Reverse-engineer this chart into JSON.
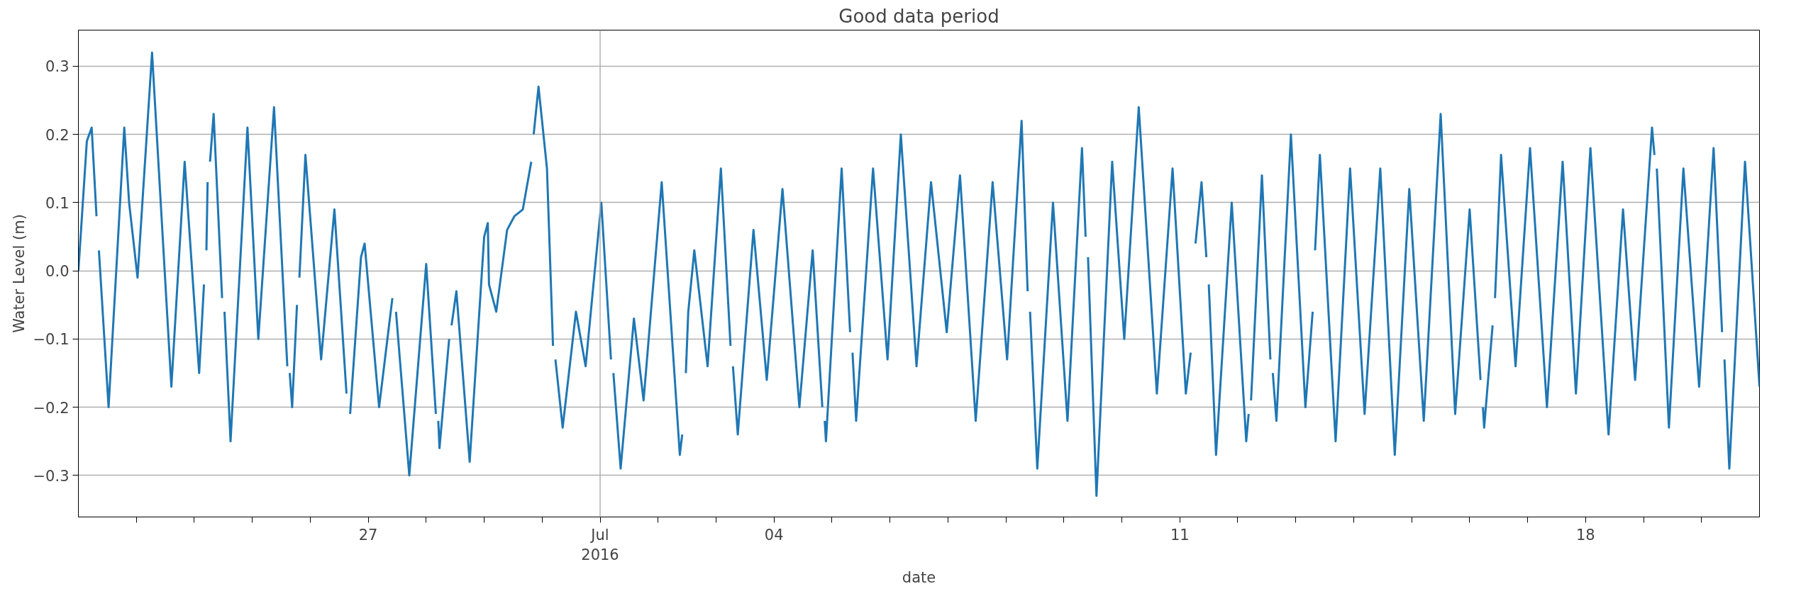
{
  "chart_data": {
    "type": "line",
    "title": "Good data period",
    "xlabel": "date",
    "ylabel": "Water Level (m)",
    "xlim": [
      "2016-06-22T00:00",
      "2016-07-21T00:00"
    ],
    "ylim": [
      -0.361,
      0.353
    ],
    "xticks": [
      {
        "value": "2016-06-23",
        "label": null
      },
      {
        "value": "2016-06-24",
        "label": null
      },
      {
        "value": "2016-06-25",
        "label": null
      },
      {
        "value": "2016-06-26",
        "label": null
      },
      {
        "value": "2016-06-27",
        "label": "27"
      },
      {
        "value": "2016-06-28",
        "label": null
      },
      {
        "value": "2016-06-29",
        "label": null
      },
      {
        "value": "2016-06-30",
        "label": null
      },
      {
        "value": "2016-07-01",
        "label": "Jul\n2016"
      },
      {
        "value": "2016-07-02",
        "label": null
      },
      {
        "value": "2016-07-03",
        "label": null
      },
      {
        "value": "2016-07-04",
        "label": "04"
      },
      {
        "value": "2016-07-05",
        "label": null
      },
      {
        "value": "2016-07-06",
        "label": null
      },
      {
        "value": "2016-07-07",
        "label": null
      },
      {
        "value": "2016-07-08",
        "label": null
      },
      {
        "value": "2016-07-09",
        "label": null
      },
      {
        "value": "2016-07-10",
        "label": null
      },
      {
        "value": "2016-07-11",
        "label": "11"
      },
      {
        "value": "2016-07-12",
        "label": null
      },
      {
        "value": "2016-07-13",
        "label": null
      },
      {
        "value": "2016-07-14",
        "label": null
      },
      {
        "value": "2016-07-15",
        "label": null
      },
      {
        "value": "2016-07-16",
        "label": null
      },
      {
        "value": "2016-07-17",
        "label": null
      },
      {
        "value": "2016-07-18",
        "label": "18"
      },
      {
        "value": "2016-07-19",
        "label": null
      },
      {
        "value": "2016-07-20",
        "label": null
      }
    ],
    "yticks": [
      {
        "value": -0.3,
        "label": "−0.3"
      },
      {
        "value": -0.2,
        "label": "−0.2"
      },
      {
        "value": -0.1,
        "label": "−0.1"
      },
      {
        "value": 0,
        "label": "0.0"
      },
      {
        "value": 0.1,
        "label": "0.1"
      },
      {
        "value": 0.2,
        "label": "0.2"
      },
      {
        "value": 0.3,
        "label": "0.3"
      }
    ],
    "grid": "y",
    "ref_lines": [
      {
        "axis": "x",
        "value": "2016-07-01",
        "color": "#b0b0b0"
      }
    ],
    "x": [
      "2016-06-22T00:00",
      "2016-06-22T03:30",
      "2016-06-22T05:30",
      "2016-06-22T07:30",
      "2016-06-22T08:00",
      "2016-06-22T08:30",
      "2016-06-22T12:30",
      "2016-06-22T19:00",
      "2016-06-22T21:00",
      "2016-06-23T00:30",
      "2016-06-23T06:30",
      "2016-06-23T14:30",
      "2016-06-23T20:00",
      "2016-06-24T02:00",
      "2016-06-24T04:00",
      "2016-06-24T04:30",
      "2016-06-24T05:00",
      "2016-06-24T05:30",
      "2016-06-24T06:00",
      "2016-06-24T06:30",
      "2016-06-24T08:00",
      "2016-06-24T11:30",
      "2016-06-24T12:00",
      "2016-06-24T12:30",
      "2016-06-24T15:00",
      "2016-06-24T22:00",
      "2016-06-25T02:30",
      "2016-06-25T09:00",
      "2016-06-25T14:30",
      "2016-06-25T15:00",
      "2016-06-25T15:30",
      "2016-06-25T16:30",
      "2016-06-25T18:30",
      "2016-06-25T19:00",
      "2016-06-25T19:30",
      "2016-06-25T22:00",
      "2016-06-26T04:30",
      "2016-06-26T10:00",
      "2016-06-26T15:00",
      "2016-06-26T15:30",
      "2016-06-26T16:30",
      "2016-06-26T21:00",
      "2016-06-26T22:30",
      "2016-06-27T04:30",
      "2016-06-27T10:00",
      "2016-06-27T10:30",
      "2016-06-27T11:30",
      "2016-06-27T17:00",
      "2016-06-28T00:00",
      "2016-06-28T04:00",
      "2016-06-28T04:30",
      "2016-06-28T05:00",
      "2016-06-28T05:30",
      "2016-06-28T09:30",
      "2016-06-28T10:00",
      "2016-06-28T10:30",
      "2016-06-28T12:30",
      "2016-06-28T18:00",
      "2016-06-29T00:00",
      "2016-06-29T01:30",
      "2016-06-29T02:00",
      "2016-06-29T05:00",
      "2016-06-29T09:30",
      "2016-06-29T12:30",
      "2016-06-29T16:00",
      "2016-06-29T19:30",
      "2016-06-29T20:00",
      "2016-06-29T20:30",
      "2016-06-29T22:30",
      "2016-06-30T02:00",
      "2016-06-30T04:30",
      "2016-06-30T05:00",
      "2016-06-30T05:30",
      "2016-06-30T08:30",
      "2016-06-30T14:00",
      "2016-06-30T18:00",
      "2016-07-01T00:30",
      "2016-07-01T04:30",
      "2016-07-01T05:00",
      "2016-07-01T05:30",
      "2016-07-01T08:30",
      "2016-07-01T14:00",
      "2016-07-01T18:00",
      "2016-07-02T01:30",
      "2016-07-02T09:00",
      "2016-07-02T10:00",
      "2016-07-02T10:30",
      "2016-07-02T11:30",
      "2016-07-02T12:30",
      "2016-07-02T15:00",
      "2016-07-02T20:30",
      "2016-07-03T02:00",
      "2016-07-03T06:00",
      "2016-07-03T06:30",
      "2016-07-03T07:00",
      "2016-07-03T09:00",
      "2016-07-03T15:30",
      "2016-07-03T21:00",
      "2016-07-04T03:30",
      "2016-07-04T10:30",
      "2016-07-04T16:00",
      "2016-07-04T20:00",
      "2016-07-04T20:30",
      "2016-07-04T21:00",
      "2016-07-04T21:30",
      "2016-07-05T04:00",
      "2016-07-05T07:30",
      "2016-07-05T08:00",
      "2016-07-05T08:30",
      "2016-07-05T10:00",
      "2016-07-05T17:00",
      "2016-07-05T23:00",
      "2016-07-06T04:30",
      "2016-07-06T11:00",
      "2016-07-06T17:00",
      "2016-07-06T23:30",
      "2016-07-07T05:00",
      "2016-07-07T11:30",
      "2016-07-07T18:30",
      "2016-07-08T00:30",
      "2016-07-08T06:30",
      "2016-07-08T09:00",
      "2016-07-08T09:30",
      "2016-07-08T10:00",
      "2016-07-08T13:00",
      "2016-07-08T19:30",
      "2016-07-09T01:30",
      "2016-07-09T07:30",
      "2016-07-09T09:00",
      "2016-07-09T09:30",
      "2016-07-09T10:00",
      "2016-07-09T13:30",
      "2016-07-09T20:00",
      "2016-07-10T01:00",
      "2016-07-10T07:00",
      "2016-07-10T14:30",
      "2016-07-10T21:00",
      "2016-07-11T02:30",
      "2016-07-11T04:30",
      "2016-07-11T05:00",
      "2016-07-11T06:30",
      "2016-07-11T09:00",
      "2016-07-11T11:00",
      "2016-07-11T11:30",
      "2016-07-11T12:00",
      "2016-07-11T15:00",
      "2016-07-11T21:30",
      "2016-07-12T03:30",
      "2016-07-12T04:30",
      "2016-07-12T05:00",
      "2016-07-12T05:30",
      "2016-07-12T10:00",
      "2016-07-12T13:30",
      "2016-07-12T14:00",
      "2016-07-12T14:30",
      "2016-07-12T16:00",
      "2016-07-12T22:00",
      "2016-07-13T04:00",
      "2016-07-13T07:00",
      "2016-07-13T07:30",
      "2016-07-13T08:00",
      "2016-07-13T10:00",
      "2016-07-13T16:30",
      "2016-07-13T22:30",
      "2016-07-14T04:30",
      "2016-07-14T11:00",
      "2016-07-14T17:00",
      "2016-07-14T23:00",
      "2016-07-15T05:00",
      "2016-07-15T12:00",
      "2016-07-15T18:00",
      "2016-07-16T00:00",
      "2016-07-16T04:30",
      "2016-07-16T05:00",
      "2016-07-16T05:30",
      "2016-07-16T06:00",
      "2016-07-16T09:30",
      "2016-07-16T10:00",
      "2016-07-16T10:30",
      "2016-07-16T13:00",
      "2016-07-16T19:00",
      "2016-07-17T01:00",
      "2016-07-17T08:00",
      "2016-07-17T14:30",
      "2016-07-17T20:00",
      "2016-07-18T02:00",
      "2016-07-18T09:30",
      "2016-07-18T15:30",
      "2016-07-18T20:30",
      "2016-07-19T03:30",
      "2016-07-19T04:30",
      "2016-07-19T05:00",
      "2016-07-19T05:30",
      "2016-07-19T10:30",
      "2016-07-19T16:30",
      "2016-07-19T23:00",
      "2016-07-20T05:00",
      "2016-07-20T08:30",
      "2016-07-20T09:00",
      "2016-07-20T09:30",
      "2016-07-20T11:30",
      "2016-07-20T18:00",
      "2016-07-21T00:00"
    ],
    "series": [
      {
        "color": "#1f77b4",
        "values": [
          0.0,
          0.19,
          0.21,
          0.08,
          null,
          0.03,
          -0.2,
          0.21,
          0.1,
          -0.01,
          0.32,
          -0.17,
          0.16,
          -0.15,
          -0.02,
          null,
          0.03,
          0.13,
          null,
          0.16,
          0.23,
          -0.04,
          null,
          -0.06,
          -0.25,
          0.21,
          -0.1,
          0.24,
          -0.14,
          null,
          -0.15,
          -0.2,
          -0.05,
          null,
          -0.01,
          0.17,
          -0.13,
          0.09,
          -0.18,
          null,
          -0.21,
          0.02,
          0.04,
          -0.2,
          -0.04,
          null,
          -0.06,
          -0.3,
          0.01,
          -0.21,
          null,
          -0.22,
          -0.26,
          -0.1,
          null,
          -0.08,
          -0.03,
          -0.28,
          0.05,
          0.07,
          -0.02,
          -0.06,
          0.06,
          0.08,
          0.09,
          0.16,
          null,
          0.2,
          0.27,
          0.15,
          -0.11,
          null,
          -0.13,
          -0.23,
          -0.06,
          -0.14,
          0.1,
          -0.13,
          null,
          -0.15,
          -0.29,
          -0.07,
          -0.19,
          0.13,
          -0.27,
          -0.24,
          null,
          -0.15,
          -0.06,
          0.03,
          -0.14,
          0.15,
          -0.11,
          null,
          -0.14,
          -0.24,
          0.06,
          -0.16,
          0.12,
          -0.2,
          0.03,
          -0.2,
          null,
          -0.22,
          -0.25,
          0.15,
          -0.09,
          null,
          -0.12,
          -0.22,
          0.15,
          -0.13,
          0.2,
          -0.14,
          0.13,
          -0.09,
          0.14,
          -0.22,
          0.13,
          -0.13,
          0.22,
          -0.03,
          null,
          -0.06,
          -0.29,
          0.1,
          -0.22,
          0.18,
          0.05,
          null,
          0.02,
          -0.33,
          0.16,
          -0.1,
          0.24,
          -0.18,
          0.15,
          -0.18,
          -0.12,
          null,
          0.04,
          0.13,
          0.02,
          null,
          -0.02,
          -0.27,
          0.1,
          -0.25,
          -0.21,
          null,
          -0.19,
          0.14,
          -0.13,
          null,
          -0.15,
          -0.22,
          0.2,
          -0.2,
          -0.06,
          null,
          0.03,
          0.17,
          -0.25,
          0.15,
          -0.21,
          0.15,
          -0.27,
          0.12,
          -0.22,
          0.23,
          -0.21,
          0.09,
          -0.16,
          null,
          -0.2,
          -0.23,
          -0.08,
          null,
          -0.04,
          0.17,
          -0.14,
          0.18,
          -0.2,
          0.16,
          -0.18,
          0.18,
          -0.24,
          0.09,
          -0.16,
          0.21,
          0.17,
          null,
          0.15,
          -0.23,
          0.15,
          -0.17,
          0.18,
          -0.09,
          null,
          -0.13,
          -0.29,
          0.16,
          -0.17
        ]
      }
    ]
  }
}
